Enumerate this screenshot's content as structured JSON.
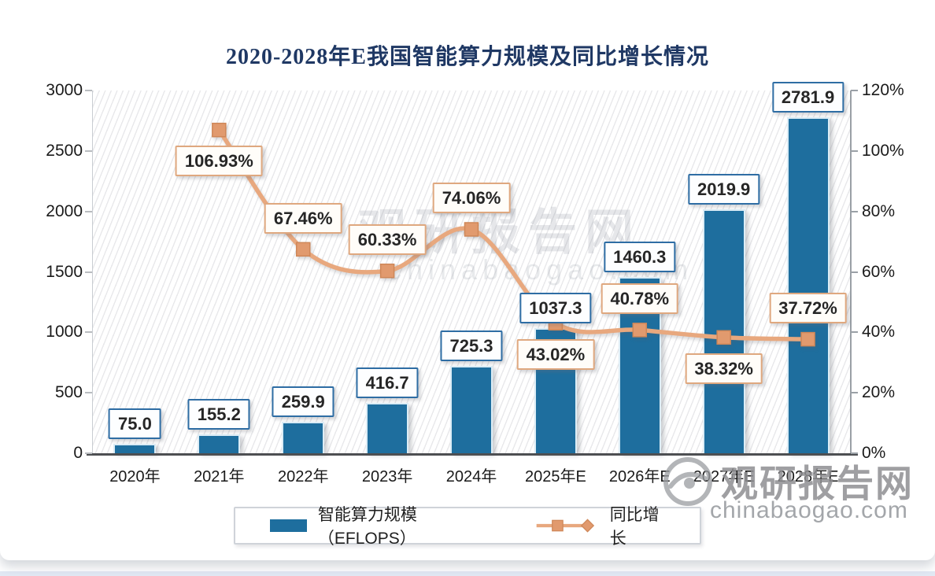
{
  "title": "2020-2028年E我国智能算力规模及同比增长情况",
  "watermarks": {
    "center_text": "观研报告网",
    "center_domain": "chinabaogao.com",
    "corner_text": "观研报告网",
    "corner_domain": "chinabaogao.com"
  },
  "chart_data": {
    "type": "bar+line",
    "title": "2020-2028年E我国智能算力规模及同比增长情况",
    "categories": [
      "2020年",
      "2021年",
      "2022年",
      "2023年",
      "2024年",
      "2025年E",
      "2026年E",
      "2027年E",
      "2028年E"
    ],
    "series": [
      {
        "name": "智能算力规模（EFLOPS）",
        "type": "bar",
        "axis": "left",
        "values": [
          75.0,
          155.2,
          259.9,
          416.7,
          725.3,
          1037.3,
          1460.3,
          2019.9,
          2781.9
        ],
        "data_labels": [
          "75.0",
          "155.2",
          "259.9",
          "416.7",
          "725.3",
          "1037.3",
          "1460.3",
          "2019.9",
          "2781.9"
        ]
      },
      {
        "name": "同比增长",
        "type": "line",
        "axis": "right",
        "values": [
          null,
          106.93,
          67.46,
          60.33,
          74.06,
          43.02,
          40.78,
          38.32,
          37.72
        ],
        "data_labels": [
          "",
          "106.93%",
          "67.46%",
          "60.33%",
          "74.06%",
          "43.02%",
          "40.78%",
          "38.32%",
          "37.72%"
        ]
      }
    ],
    "left_axis": {
      "min": 0,
      "max": 3000,
      "step": 500,
      "tick_labels": [
        "0",
        "500",
        "1000",
        "1500",
        "2000",
        "2500",
        "3000"
      ]
    },
    "right_axis": {
      "min": 0,
      "max": 120,
      "step": 20,
      "tick_labels": [
        "0%",
        "20%",
        "40%",
        "60%",
        "80%",
        "100%",
        "120%"
      ]
    },
    "legend": {
      "position": "bottom",
      "items": [
        "智能算力规模（EFLOPS）",
        "同比增长"
      ]
    },
    "grid": false,
    "plot_background": "diagonal-hatch",
    "colors": {
      "bar": "#1e6e9e",
      "line": "#e8a87e",
      "marker": "#e19a6e",
      "marker_border": "#cf8758",
      "title": "#1f3864",
      "bar_label_border": "#2e6da4",
      "line_label_border": "#dfa87f"
    }
  }
}
